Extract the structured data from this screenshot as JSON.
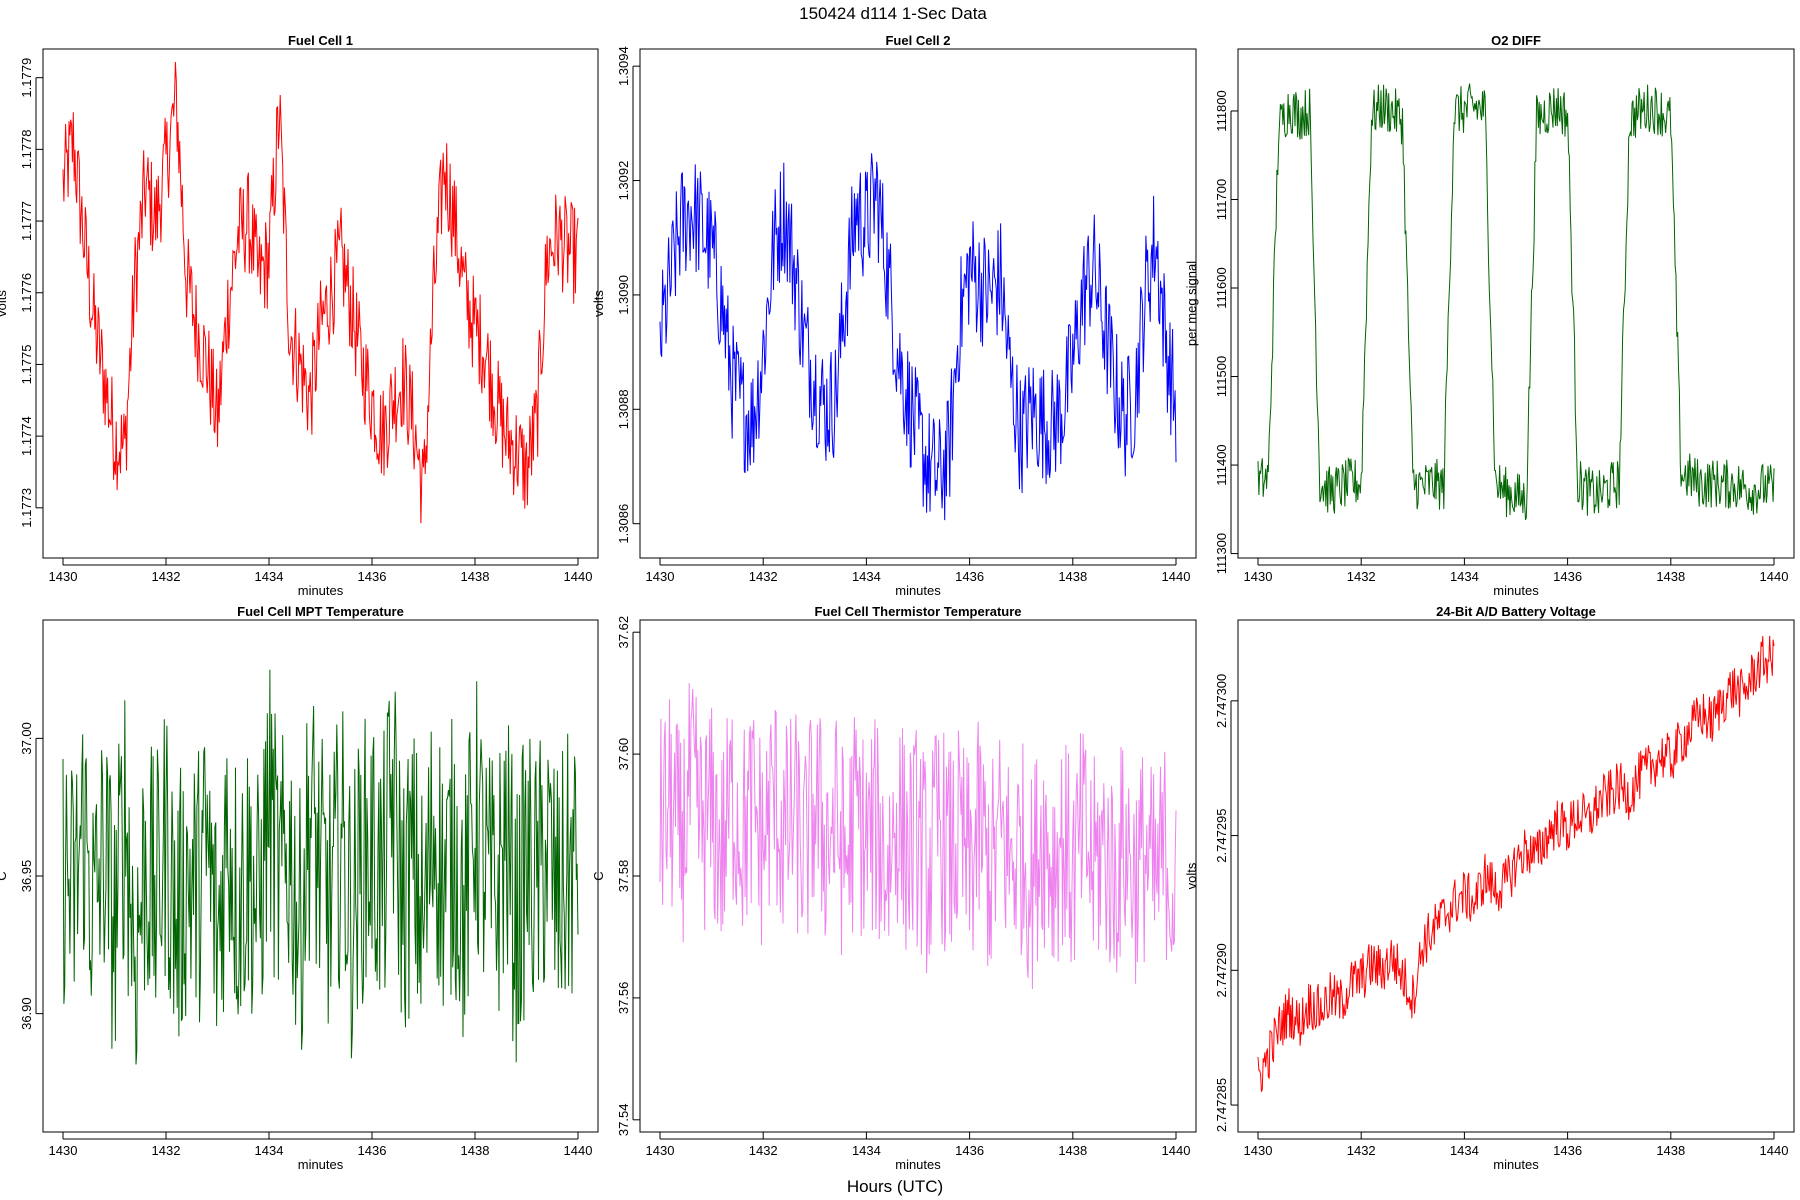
{
  "figure": {
    "title": "150424   d114   1-Sec Data",
    "xlabel": "Hours (UTC)"
  },
  "chart_data": [
    {
      "type": "line",
      "title": "Fuel Cell 1",
      "xlabel": "minutes",
      "ylabel": "volts",
      "color": "#ff0000",
      "xlim": [
        1430,
        1440
      ],
      "ylim": [
        1.17723,
        1.17794
      ],
      "x_ticks": [
        1430,
        1432,
        1434,
        1436,
        1438,
        1440
      ],
      "y_ticks": [
        "1.1773",
        "1.1774",
        "1.1775",
        "1.1776",
        "1.1777",
        "1.1778",
        "1.1779"
      ],
      "x": [
        1430.0,
        1430.2,
        1430.4,
        1430.6,
        1430.8,
        1431.0,
        1431.2,
        1431.4,
        1431.6,
        1431.8,
        1432.0,
        1432.2,
        1432.4,
        1432.6,
        1432.8,
        1433.0,
        1433.2,
        1433.4,
        1433.6,
        1433.8,
        1434.0,
        1434.2,
        1434.4,
        1434.6,
        1434.8,
        1435.0,
        1435.2,
        1435.4,
        1435.6,
        1435.8,
        1436.0,
        1436.2,
        1436.4,
        1436.6,
        1436.8,
        1437.0,
        1437.2,
        1437.4,
        1437.6,
        1437.8,
        1438.0,
        1438.2,
        1438.4,
        1438.6,
        1438.8,
        1439.0,
        1439.2,
        1439.4,
        1439.6,
        1439.8,
        1440.0
      ],
      "values": [
        1.17775,
        1.17781,
        1.17768,
        1.17756,
        1.17748,
        1.1774,
        1.17738,
        1.17762,
        1.17775,
        1.1777,
        1.17778,
        1.17787,
        1.17762,
        1.17755,
        1.1775,
        1.17742,
        1.17758,
        1.17768,
        1.1777,
        1.17762,
        1.17765,
        1.17785,
        1.17755,
        1.1775,
        1.17745,
        1.17755,
        1.1776,
        1.17765,
        1.17758,
        1.1775,
        1.17745,
        1.1774,
        1.17745,
        1.17748,
        1.17742,
        1.17732,
        1.1776,
        1.17778,
        1.1777,
        1.1776,
        1.17755,
        1.17752,
        1.17745,
        1.1774,
        1.17738,
        1.17735,
        1.17742,
        1.17765,
        1.17768,
        1.17766,
        1.17765
      ]
    },
    {
      "type": "line",
      "title": "Fuel Cell 2",
      "xlabel": "minutes",
      "ylabel": "volts",
      "color": "#0000ff",
      "xlim": [
        1430,
        1440
      ],
      "ylim": [
        1.30854,
        1.30943
      ],
      "x_ticks": [
        1430,
        1432,
        1434,
        1436,
        1438,
        1440
      ],
      "y_ticks": [
        "1.3086",
        "1.3088",
        "1.3090",
        "1.3092",
        "1.3094"
      ],
      "x": [
        1430.0,
        1430.2,
        1430.4,
        1430.6,
        1430.8,
        1431.0,
        1431.2,
        1431.4,
        1431.6,
        1431.8,
        1432.0,
        1432.2,
        1432.4,
        1432.6,
        1432.8,
        1433.0,
        1433.2,
        1433.4,
        1433.6,
        1433.8,
        1434.0,
        1434.2,
        1434.4,
        1434.6,
        1434.8,
        1435.0,
        1435.2,
        1435.4,
        1435.6,
        1435.8,
        1436.0,
        1436.2,
        1436.4,
        1436.6,
        1436.8,
        1437.0,
        1437.2,
        1437.4,
        1437.6,
        1437.8,
        1438.0,
        1438.2,
        1438.4,
        1438.6,
        1438.8,
        1439.0,
        1439.2,
        1439.4,
        1439.6,
        1439.8,
        1440.0
      ],
      "values": [
        1.30892,
        1.30902,
        1.30912,
        1.30915,
        1.30912,
        1.30908,
        1.30898,
        1.30885,
        1.3088,
        1.30878,
        1.3089,
        1.30908,
        1.30915,
        1.30905,
        1.30892,
        1.30885,
        1.3088,
        1.30882,
        1.309,
        1.30915,
        1.30912,
        1.30918,
        1.30905,
        1.3089,
        1.30882,
        1.30875,
        1.3087,
        1.30868,
        1.30872,
        1.30895,
        1.30905,
        1.30902,
        1.309,
        1.30903,
        1.30885,
        1.30875,
        1.3088,
        1.30878,
        1.30877,
        1.3088,
        1.30888,
        1.309,
        1.30905,
        1.30895,
        1.30885,
        1.30878,
        1.30882,
        1.309,
        1.3091,
        1.30892,
        1.3088
      ]
    },
    {
      "type": "line",
      "title": "O2 DIFF",
      "xlabel": "minutes",
      "ylabel": "per meg signal",
      "color": "#006400",
      "xlim": [
        1430,
        1440
      ],
      "ylim": [
        111295,
        111870
      ],
      "x_ticks": [
        1430,
        1432,
        1434,
        1436,
        1438,
        1440
      ],
      "y_ticks": [
        "111300",
        "111400",
        "111500",
        "111600",
        "111700",
        "111800"
      ],
      "x": [
        1430.0,
        1430.2,
        1430.4,
        1430.6,
        1430.8,
        1431.0,
        1431.2,
        1431.4,
        1431.6,
        1431.8,
        1432.0,
        1432.2,
        1432.4,
        1432.6,
        1432.8,
        1433.0,
        1433.2,
        1433.4,
        1433.6,
        1433.8,
        1434.0,
        1434.2,
        1434.4,
        1434.6,
        1434.8,
        1435.0,
        1435.2,
        1435.4,
        1435.6,
        1435.8,
        1436.0,
        1436.2,
        1436.4,
        1436.6,
        1436.8,
        1437.0,
        1437.2,
        1437.4,
        1437.6,
        1437.8,
        1438.0,
        1438.2,
        1438.4,
        1438.6,
        1438.8,
        1439.0,
        1439.2,
        1439.4,
        1439.6,
        1439.8,
        1440.0
      ],
      "values": [
        111380,
        111385,
        111780,
        111805,
        111795,
        111800,
        111380,
        111370,
        111375,
        111380,
        111380,
        111795,
        111805,
        111800,
        111790,
        111380,
        111375,
        111380,
        111375,
        111800,
        111800,
        111805,
        111800,
        111380,
        111370,
        111365,
        111360,
        111790,
        111800,
        111805,
        111795,
        111380,
        111370,
        111365,
        111375,
        111380,
        111790,
        111800,
        111805,
        111800,
        111790,
        111390,
        111385,
        111378,
        111380,
        111378,
        111378,
        111375,
        111372,
        111375,
        111372
      ]
    },
    {
      "type": "line",
      "title": "Fuel Cell MPT Temperature",
      "xlabel": "minutes",
      "ylabel": "C",
      "color": "#006400",
      "xlim": [
        1430,
        1440
      ],
      "ylim": [
        36.857,
        37.043
      ],
      "x_ticks": [
        1430,
        1432,
        1434,
        1436,
        1438,
        1440
      ],
      "y_ticks": [
        "36.90",
        "36.95",
        "37.00"
      ],
      "x": [
        1430.0,
        1430.2,
        1430.4,
        1430.6,
        1430.8,
        1431.0,
        1431.2,
        1431.4,
        1431.6,
        1431.8,
        1432.0,
        1432.2,
        1432.4,
        1432.6,
        1432.8,
        1433.0,
        1433.2,
        1433.4,
        1433.6,
        1433.8,
        1434.0,
        1434.2,
        1434.4,
        1434.6,
        1434.8,
        1435.0,
        1435.2,
        1435.4,
        1435.6,
        1435.8,
        1436.0,
        1436.2,
        1436.4,
        1436.6,
        1436.8,
        1437.0,
        1437.2,
        1437.4,
        1437.6,
        1437.8,
        1438.0,
        1438.2,
        1438.4,
        1438.6,
        1438.8,
        1439.0,
        1439.2,
        1439.4,
        1439.6,
        1439.8,
        1440.0
      ],
      "values": [
        36.955,
        36.94,
        36.97,
        36.935,
        36.96,
        36.93,
        36.975,
        36.92,
        36.955,
        36.94,
        36.965,
        36.93,
        36.95,
        36.945,
        36.96,
        36.925,
        36.97,
        36.94,
        36.955,
        36.935,
        36.98,
        36.945,
        36.96,
        36.93,
        36.975,
        36.95,
        36.94,
        36.965,
        36.935,
        36.955,
        36.96,
        36.945,
        36.98,
        36.94,
        36.955,
        36.93,
        36.97,
        36.945,
        36.96,
        36.935,
        36.975,
        36.95,
        36.94,
        36.965,
        36.93,
        36.955,
        36.945,
        36.96,
        36.94,
        36.95,
        36.955
      ]
    },
    {
      "type": "line",
      "title": "Fuel Cell Thermistor Temperature",
      "xlabel": "minutes",
      "ylabel": "C",
      "color": "#ee82ee",
      "xlim": [
        1430,
        1440
      ],
      "ylim": [
        37.538,
        37.622
      ],
      "x_ticks": [
        1430,
        1432,
        1434,
        1436,
        1438,
        1440
      ],
      "y_ticks": [
        "37.54",
        "37.56",
        "37.58",
        "37.60",
        "37.62"
      ],
      "x": [
        1430.0,
        1430.2,
        1430.4,
        1430.6,
        1430.8,
        1431.0,
        1431.2,
        1431.4,
        1431.6,
        1431.8,
        1432.0,
        1432.2,
        1432.4,
        1432.6,
        1432.8,
        1433.0,
        1433.2,
        1433.4,
        1433.6,
        1433.8,
        1434.0,
        1434.2,
        1434.4,
        1434.6,
        1434.8,
        1435.0,
        1435.2,
        1435.4,
        1435.6,
        1435.8,
        1436.0,
        1436.2,
        1436.4,
        1436.6,
        1436.8,
        1437.0,
        1437.2,
        1437.4,
        1437.6,
        1437.8,
        1438.0,
        1438.2,
        1438.4,
        1438.6,
        1438.8,
        1439.0,
        1439.2,
        1439.4,
        1439.6,
        1439.8,
        1440.0
      ],
      "values": [
        37.588,
        37.592,
        37.585,
        37.595,
        37.588,
        37.59,
        37.584,
        37.593,
        37.587,
        37.591,
        37.585,
        37.594,
        37.586,
        37.59,
        37.583,
        37.592,
        37.586,
        37.589,
        37.582,
        37.591,
        37.585,
        37.588,
        37.581,
        37.59,
        37.584,
        37.587,
        37.58,
        37.589,
        37.583,
        37.586,
        37.581,
        37.588,
        37.58,
        37.587,
        37.582,
        37.585,
        37.579,
        37.588,
        37.582,
        37.586,
        37.58,
        37.587,
        37.581,
        37.585,
        37.579,
        37.586,
        37.58,
        37.584,
        37.578,
        37.585,
        37.575
      ]
    },
    {
      "type": "line",
      "title": "24-Bit A/D Battery Voltage",
      "xlabel": "minutes",
      "ylabel": "volts",
      "color": "#ff0000",
      "xlim": [
        1430,
        1440
      ],
      "ylim": [
        2.747284,
        2.747303
      ],
      "x_ticks": [
        1430,
        1432,
        1434,
        1436,
        1438,
        1440
      ],
      "y_ticks": [
        "2.747285",
        "2.747290",
        "2.747295",
        "2.747300"
      ],
      "x": [
        1430.0,
        1430.2,
        1430.4,
        1430.6,
        1430.8,
        1431.0,
        1431.2,
        1431.4,
        1431.6,
        1431.8,
        1432.0,
        1432.2,
        1432.4,
        1432.6,
        1432.8,
        1433.0,
        1433.2,
        1433.4,
        1433.6,
        1433.8,
        1434.0,
        1434.2,
        1434.4,
        1434.6,
        1434.8,
        1435.0,
        1435.2,
        1435.4,
        1435.6,
        1435.8,
        1436.0,
        1436.2,
        1436.4,
        1436.6,
        1436.8,
        1437.0,
        1437.2,
        1437.4,
        1437.6,
        1437.8,
        1438.0,
        1438.2,
        1438.4,
        1438.6,
        1438.8,
        1439.0,
        1439.2,
        1439.4,
        1439.6,
        1439.8,
        1440.0
      ],
      "values": [
        2.747286,
        2.7472868,
        2.7472878,
        2.7472885,
        2.747288,
        2.7472888,
        2.7472885,
        2.747289,
        2.7472888,
        2.7472895,
        2.7472897,
        2.7472902,
        2.74729,
        2.7472905,
        2.7472898,
        2.747289,
        2.747291,
        2.7472915,
        2.747292,
        2.7472925,
        2.7472928,
        2.7472925,
        2.7472935,
        2.747293,
        2.7472932,
        2.747294,
        2.7472945,
        2.7472942,
        2.747295,
        2.7472955,
        2.7472952,
        2.7472958,
        2.7472955,
        2.7472962,
        2.7472965,
        2.7472968,
        2.7472965,
        2.7472972,
        2.7472975,
        2.747298,
        2.7472978,
        2.7472985,
        2.747299,
        2.7472995,
        2.7472992,
        2.7473,
        2.7473005,
        2.7473002,
        2.747301,
        2.7473015,
        2.7473015
      ]
    }
  ]
}
